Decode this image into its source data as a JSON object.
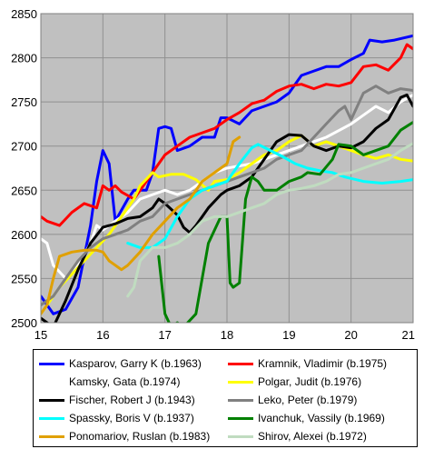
{
  "chart_data": {
    "type": "line",
    "title": "",
    "xlabel": "",
    "ylabel": "",
    "xlim": [
      15,
      21
    ],
    "ylim": [
      2500,
      2850
    ],
    "x_ticks": [
      "15",
      "16",
      "17",
      "18",
      "19",
      "20",
      "21"
    ],
    "y_ticks": [
      "2500",
      "2550",
      "2600",
      "2650",
      "2700",
      "2750",
      "2800",
      "2850"
    ],
    "grid": true,
    "legend_position": "bottom",
    "plot_background": "#c0c0c0",
    "series": [
      {
        "name": "Kasparov, Garry K (b.1963)",
        "color": "#0000ff",
        "points": [
          [
            15.0,
            2530
          ],
          [
            15.2,
            2510
          ],
          [
            15.4,
            2515
          ],
          [
            15.6,
            2540
          ],
          [
            15.8,
            2610
          ],
          [
            15.9,
            2660
          ],
          [
            16.0,
            2695
          ],
          [
            16.1,
            2680
          ],
          [
            16.2,
            2615
          ],
          [
            16.4,
            2640
          ],
          [
            16.5,
            2650
          ],
          [
            16.7,
            2650
          ],
          [
            16.8,
            2670
          ],
          [
            16.9,
            2720
          ],
          [
            17.0,
            2722
          ],
          [
            17.1,
            2720
          ],
          [
            17.2,
            2695
          ],
          [
            17.4,
            2700
          ],
          [
            17.6,
            2710
          ],
          [
            17.8,
            2710
          ],
          [
            17.9,
            2732
          ],
          [
            18.0,
            2732
          ],
          [
            18.2,
            2725
          ],
          [
            18.4,
            2740
          ],
          [
            18.6,
            2745
          ],
          [
            18.8,
            2750
          ],
          [
            19.0,
            2760
          ],
          [
            19.2,
            2780
          ],
          [
            19.4,
            2785
          ],
          [
            19.6,
            2790
          ],
          [
            19.8,
            2790
          ],
          [
            20.0,
            2798
          ],
          [
            20.2,
            2805
          ],
          [
            20.3,
            2820
          ],
          [
            20.5,
            2818
          ],
          [
            20.7,
            2820
          ],
          [
            21.0,
            2825
          ]
        ]
      },
      {
        "name": "Kramnik, Vladimir (b.1975)",
        "color": "#ff0000",
        "points": [
          [
            15.0,
            2620
          ],
          [
            15.1,
            2615
          ],
          [
            15.3,
            2610
          ],
          [
            15.5,
            2625
          ],
          [
            15.7,
            2635
          ],
          [
            15.9,
            2630
          ],
          [
            16.0,
            2655
          ],
          [
            16.1,
            2650
          ],
          [
            16.2,
            2655
          ],
          [
            16.3,
            2648
          ],
          [
            16.5,
            2640
          ],
          [
            16.7,
            2660
          ],
          [
            16.9,
            2680
          ],
          [
            17.0,
            2690
          ],
          [
            17.2,
            2700
          ],
          [
            17.4,
            2710
          ],
          [
            17.6,
            2715
          ],
          [
            17.8,
            2720
          ],
          [
            18.0,
            2730
          ],
          [
            18.2,
            2738
          ],
          [
            18.4,
            2748
          ],
          [
            18.6,
            2752
          ],
          [
            18.8,
            2762
          ],
          [
            19.0,
            2768
          ],
          [
            19.2,
            2770
          ],
          [
            19.4,
            2765
          ],
          [
            19.6,
            2770
          ],
          [
            19.8,
            2768
          ],
          [
            20.0,
            2772
          ],
          [
            20.2,
            2790
          ],
          [
            20.4,
            2792
          ],
          [
            20.6,
            2786
          ],
          [
            20.8,
            2800
          ],
          [
            20.9,
            2815
          ],
          [
            21.0,
            2810
          ]
        ]
      },
      {
        "name": "Kamsky, Gata (b.1974)",
        "color": "#ffffff",
        "points": [
          [
            15.0,
            2595
          ],
          [
            15.1,
            2590
          ],
          [
            15.2,
            2565
          ],
          [
            15.4,
            2550
          ],
          [
            15.6,
            2565
          ],
          [
            15.8,
            2590
          ],
          [
            15.9,
            2610
          ],
          [
            16.0,
            2605
          ],
          [
            16.2,
            2615
          ],
          [
            16.4,
            2625
          ],
          [
            16.6,
            2640
          ],
          [
            16.8,
            2645
          ],
          [
            17.0,
            2650
          ],
          [
            17.2,
            2645
          ],
          [
            17.4,
            2650
          ],
          [
            17.6,
            2660
          ],
          [
            17.8,
            2670
          ],
          [
            18.0,
            2675
          ],
          [
            18.4,
            2680
          ],
          [
            18.8,
            2690
          ],
          [
            19.2,
            2700
          ],
          [
            19.6,
            2710
          ],
          [
            20.0,
            2725
          ],
          [
            20.2,
            2735
          ],
          [
            20.4,
            2745
          ],
          [
            20.6,
            2738
          ],
          [
            20.8,
            2750
          ],
          [
            21.0,
            2758
          ]
        ]
      },
      {
        "name": "Polgar, Judit (b.1976)",
        "color": "#ffff00",
        "points": [
          [
            15.0,
            2510
          ],
          [
            15.1,
            2520
          ],
          [
            15.3,
            2540
          ],
          [
            15.5,
            2555
          ],
          [
            15.7,
            2570
          ],
          [
            15.9,
            2585
          ],
          [
            16.1,
            2600
          ],
          [
            16.3,
            2620
          ],
          [
            16.5,
            2640
          ],
          [
            16.6,
            2655
          ],
          [
            16.8,
            2670
          ],
          [
            16.9,
            2665
          ],
          [
            17.1,
            2668
          ],
          [
            17.3,
            2668
          ],
          [
            17.5,
            2662
          ],
          [
            17.7,
            2650
          ],
          [
            17.8,
            2660
          ],
          [
            18.0,
            2662
          ],
          [
            18.2,
            2670
          ],
          [
            18.4,
            2680
          ],
          [
            18.6,
            2690
          ],
          [
            18.8,
            2695
          ],
          [
            19.0,
            2705
          ],
          [
            19.2,
            2712
          ],
          [
            19.4,
            2700
          ],
          [
            19.6,
            2705
          ],
          [
            19.8,
            2700
          ],
          [
            20.0,
            2695
          ],
          [
            20.2,
            2690
          ],
          [
            20.4,
            2686
          ],
          [
            20.6,
            2690
          ],
          [
            20.8,
            2685
          ],
          [
            21.0,
            2683
          ]
        ]
      },
      {
        "name": "Fischer, Robert J (b.1943)",
        "color": "#000000",
        "points": [
          [
            15.0,
            2505
          ],
          [
            15.2,
            2495
          ],
          [
            15.4,
            2525
          ],
          [
            15.6,
            2560
          ],
          [
            15.8,
            2590
          ],
          [
            16.0,
            2608
          ],
          [
            16.2,
            2612
          ],
          [
            16.4,
            2618
          ],
          [
            16.6,
            2620
          ],
          [
            16.8,
            2630
          ],
          [
            16.9,
            2640
          ],
          [
            17.0,
            2635
          ],
          [
            17.2,
            2622
          ],
          [
            17.3,
            2608
          ],
          [
            17.4,
            2602
          ],
          [
            17.5,
            2610
          ],
          [
            17.7,
            2630
          ],
          [
            17.9,
            2645
          ],
          [
            18.0,
            2650
          ],
          [
            18.2,
            2655
          ],
          [
            18.4,
            2665
          ],
          [
            18.6,
            2685
          ],
          [
            18.8,
            2705
          ],
          [
            19.0,
            2713
          ],
          [
            19.2,
            2712
          ],
          [
            19.4,
            2700
          ],
          [
            19.6,
            2695
          ],
          [
            19.8,
            2700
          ],
          [
            20.0,
            2698
          ],
          [
            20.2,
            2705
          ],
          [
            20.4,
            2720
          ],
          [
            20.6,
            2730
          ],
          [
            20.8,
            2755
          ],
          [
            20.9,
            2758
          ],
          [
            21.0,
            2745
          ]
        ]
      },
      {
        "name": "Leko, Peter (b.1979)",
        "color": "#808080",
        "points": [
          [
            15.0,
            2520
          ],
          [
            15.2,
            2530
          ],
          [
            15.4,
            2550
          ],
          [
            15.6,
            2570
          ],
          [
            15.8,
            2585
          ],
          [
            16.0,
            2595
          ],
          [
            16.2,
            2600
          ],
          [
            16.4,
            2605
          ],
          [
            16.6,
            2615
          ],
          [
            16.8,
            2620
          ],
          [
            17.0,
            2635
          ],
          [
            17.2,
            2640
          ],
          [
            17.4,
            2645
          ],
          [
            17.6,
            2650
          ],
          [
            17.8,
            2655
          ],
          [
            18.0,
            2660
          ],
          [
            18.2,
            2665
          ],
          [
            18.4,
            2670
          ],
          [
            18.6,
            2675
          ],
          [
            18.8,
            2685
          ],
          [
            19.0,
            2690
          ],
          [
            19.2,
            2695
          ],
          [
            19.4,
            2710
          ],
          [
            19.6,
            2725
          ],
          [
            19.8,
            2740
          ],
          [
            19.9,
            2745
          ],
          [
            20.0,
            2730
          ],
          [
            20.2,
            2760
          ],
          [
            20.4,
            2768
          ],
          [
            20.6,
            2760
          ],
          [
            20.8,
            2765
          ],
          [
            21.0,
            2763
          ]
        ]
      },
      {
        "name": "Spassky, Boris V (b.1937)",
        "color": "#00ffff",
        "points": [
          [
            16.4,
            2590
          ],
          [
            16.6,
            2585
          ],
          [
            16.8,
            2585
          ],
          [
            17.0,
            2595
          ],
          [
            17.2,
            2620
          ],
          [
            17.4,
            2640
          ],
          [
            17.6,
            2650
          ],
          [
            17.8,
            2655
          ],
          [
            18.0,
            2660
          ],
          [
            18.2,
            2680
          ],
          [
            18.4,
            2698
          ],
          [
            18.5,
            2702
          ],
          [
            18.7,
            2695
          ],
          [
            18.9,
            2688
          ],
          [
            19.1,
            2680
          ],
          [
            19.3,
            2675
          ],
          [
            19.5,
            2672
          ],
          [
            19.7,
            2670
          ],
          [
            19.9,
            2665
          ],
          [
            20.2,
            2660
          ],
          [
            20.5,
            2658
          ],
          [
            20.8,
            2660
          ],
          [
            21.0,
            2662
          ]
        ]
      },
      {
        "name": "Ivanchuk, Vassily (b.1969)",
        "color": "#008000",
        "points": [
          [
            16.9,
            2575
          ],
          [
            17.0,
            2510
          ],
          [
            17.1,
            2495
          ],
          [
            17.2,
            2500
          ],
          [
            17.3,
            2495
          ],
          [
            17.5,
            2510
          ],
          [
            17.7,
            2590
          ],
          [
            17.9,
            2620
          ],
          [
            18.0,
            2620
          ],
          [
            18.05,
            2545
          ],
          [
            18.1,
            2540
          ],
          [
            18.2,
            2545
          ],
          [
            18.3,
            2640
          ],
          [
            18.4,
            2665
          ],
          [
            18.5,
            2660
          ],
          [
            18.6,
            2650
          ],
          [
            18.8,
            2650
          ],
          [
            19.0,
            2660
          ],
          [
            19.2,
            2665
          ],
          [
            19.3,
            2670
          ],
          [
            19.5,
            2668
          ],
          [
            19.7,
            2685
          ],
          [
            19.8,
            2702
          ],
          [
            20.0,
            2700
          ],
          [
            20.2,
            2690
          ],
          [
            20.4,
            2695
          ],
          [
            20.6,
            2700
          ],
          [
            20.8,
            2718
          ],
          [
            21.0,
            2727
          ]
        ]
      },
      {
        "name": "Ponomariov, Ruslan (b.1983)",
        "color": "#e0a000",
        "points": [
          [
            15.0,
            2510
          ],
          [
            15.1,
            2520
          ],
          [
            15.2,
            2550
          ],
          [
            15.3,
            2575
          ],
          [
            15.5,
            2580
          ],
          [
            15.7,
            2582
          ],
          [
            15.9,
            2582
          ],
          [
            16.0,
            2580
          ],
          [
            16.1,
            2570
          ],
          [
            16.3,
            2560
          ],
          [
            16.4,
            2565
          ],
          [
            16.6,
            2580
          ],
          [
            16.8,
            2600
          ],
          [
            17.0,
            2615
          ],
          [
            17.2,
            2630
          ],
          [
            17.4,
            2640
          ],
          [
            17.6,
            2660
          ],
          [
            17.8,
            2670
          ],
          [
            18.0,
            2680
          ],
          [
            18.1,
            2705
          ],
          [
            18.2,
            2710
          ]
        ]
      },
      {
        "name": "Shirov, Alexei (b.1972)",
        "color": "#c0dcc0",
        "points": [
          [
            16.4,
            2530
          ],
          [
            16.5,
            2540
          ],
          [
            16.6,
            2570
          ],
          [
            16.8,
            2585
          ],
          [
            17.0,
            2585
          ],
          [
            17.2,
            2590
          ],
          [
            17.4,
            2600
          ],
          [
            17.6,
            2615
          ],
          [
            17.8,
            2620
          ],
          [
            18.0,
            2620
          ],
          [
            18.2,
            2625
          ],
          [
            18.4,
            2630
          ],
          [
            18.6,
            2635
          ],
          [
            18.8,
            2645
          ],
          [
            19.0,
            2650
          ],
          [
            19.2,
            2652
          ],
          [
            19.4,
            2655
          ],
          [
            19.6,
            2660
          ],
          [
            19.8,
            2668
          ],
          [
            20.0,
            2670
          ],
          [
            20.2,
            2675
          ],
          [
            20.4,
            2680
          ],
          [
            20.6,
            2685
          ],
          [
            20.8,
            2695
          ],
          [
            21.0,
            2703
          ]
        ]
      }
    ]
  }
}
